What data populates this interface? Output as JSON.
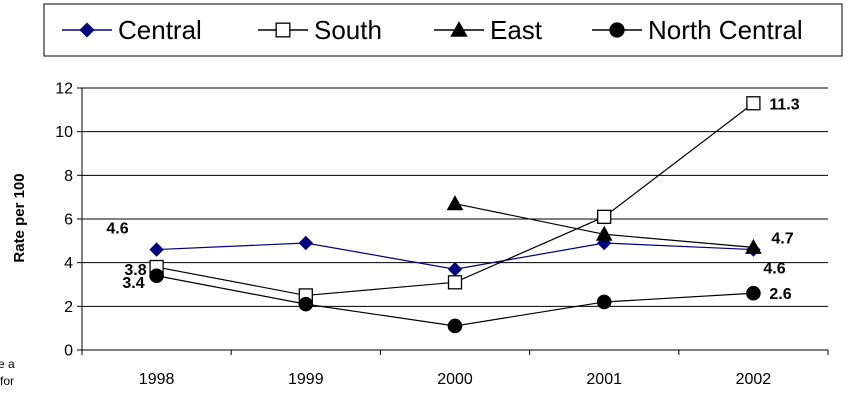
{
  "chart_data": {
    "type": "line",
    "title": "",
    "xlabel": "",
    "ylabel": "Rate per 100",
    "categories": [
      "1998",
      "1999",
      "2000",
      "2001",
      "2002"
    ],
    "ylim": [
      0,
      12
    ],
    "yticks": [
      0,
      2,
      4,
      6,
      8,
      10,
      12
    ],
    "grid": true,
    "legend_position": "top",
    "series": [
      {
        "name": "Central",
        "values": [
          4.6,
          4.9,
          3.7,
          4.9,
          4.6
        ],
        "marker": "diamond",
        "color": "#000080",
        "labels": [
          {
            "index": 0,
            "text": "4.6"
          },
          {
            "index": 4,
            "text": "4.6"
          }
        ]
      },
      {
        "name": "South",
        "values": [
          3.8,
          2.5,
          3.1,
          6.1,
          11.3
        ],
        "marker": "square-open",
        "color": "#000000",
        "labels": [
          {
            "index": 0,
            "text": "3.8"
          },
          {
            "index": 4,
            "text": "11.3"
          }
        ]
      },
      {
        "name": "East",
        "values": [
          null,
          null,
          6.7,
          5.3,
          4.7
        ],
        "marker": "triangle",
        "color": "#000000",
        "labels": [
          {
            "index": 4,
            "text": "4.7"
          }
        ]
      },
      {
        "name": "North Central",
        "values": [
          3.4,
          2.1,
          1.1,
          2.2,
          2.6
        ],
        "marker": "circle",
        "color": "#000000",
        "labels": [
          {
            "index": 0,
            "text": "3.4"
          },
          {
            "index": 4,
            "text": "2.6"
          }
        ]
      }
    ]
  },
  "cutoff_text": [
    "e a",
    "for"
  ]
}
